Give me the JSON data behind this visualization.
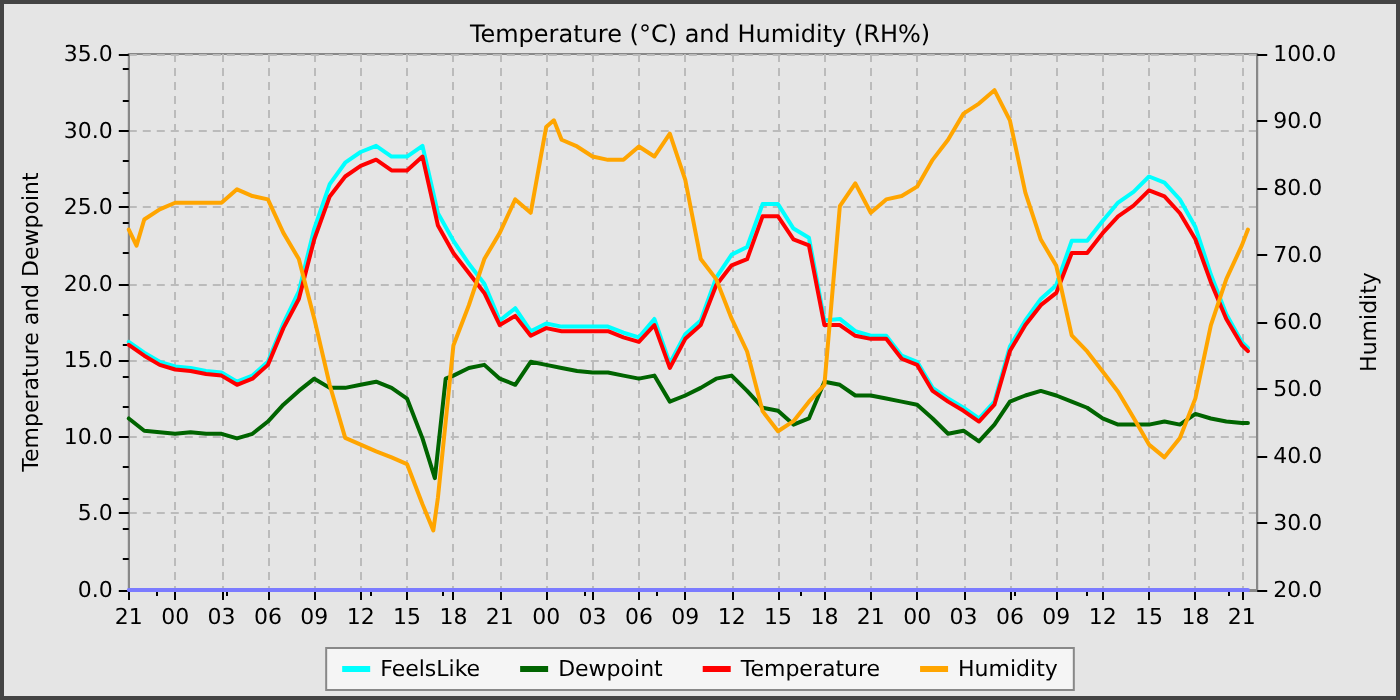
{
  "chart_data": {
    "type": "line",
    "title": "Temperature (°C) and Humidity (RH%)",
    "ylabel": "Temperature and Dewpoint",
    "y2label": "Humidity",
    "xlim": [
      "--01-01T21:00",
      "--01-04T22:00"
    ],
    "xticks": [
      {
        "value": "--01-01T21:00",
        "label": "21"
      },
      {
        "value": "--01-02T00:00",
        "label": "00"
      },
      {
        "value": "--01-02T03:00",
        "label": "03"
      },
      {
        "value": "--01-02T06:00",
        "label": "06"
      },
      {
        "value": "--01-02T09:00",
        "label": "09"
      },
      {
        "value": "--01-02T12:00",
        "label": "12"
      },
      {
        "value": "--01-02T15:00",
        "label": "15"
      },
      {
        "value": "--01-02T18:00",
        "label": "18"
      },
      {
        "value": "--01-02T21:00",
        "label": "21"
      },
      {
        "value": "--01-03T00:00",
        "label": "00"
      },
      {
        "value": "--01-03T03:00",
        "label": "03"
      },
      {
        "value": "--01-03T06:00",
        "label": "06"
      },
      {
        "value": "--01-03T09:00",
        "label": "09"
      },
      {
        "value": "--01-03T12:00",
        "label": "12"
      },
      {
        "value": "--01-03T15:00",
        "label": "15"
      },
      {
        "value": "--01-03T18:00",
        "label": "18"
      },
      {
        "value": "--01-03T21:00",
        "label": "21"
      },
      {
        "value": "--01-04T00:00",
        "label": "00"
      },
      {
        "value": "--01-04T03:00",
        "label": "03"
      },
      {
        "value": "--01-04T06:00",
        "label": "06"
      },
      {
        "value": "--01-04T09:00",
        "label": "09"
      },
      {
        "value": "--01-04T12:00",
        "label": "12"
      },
      {
        "value": "--01-04T15:00",
        "label": "15"
      },
      {
        "value": "--01-04T18:00",
        "label": "18"
      },
      {
        "value": "--01-04T21:00",
        "label": "21"
      }
    ],
    "ylim": [
      0,
      35
    ],
    "yticks": [
      {
        "value": 0,
        "label": "0.0"
      },
      {
        "value": 5,
        "label": "5.0"
      },
      {
        "value": 10,
        "label": "10.0"
      },
      {
        "value": 15,
        "label": "15.0"
      },
      {
        "value": 20,
        "label": "20.0"
      },
      {
        "value": 25,
        "label": "25.0"
      },
      {
        "value": 30,
        "label": "30.0"
      },
      {
        "value": 35,
        "label": "35.0"
      }
    ],
    "y2lim": [
      20,
      100
    ],
    "y2ticks": [
      {
        "value": 20,
        "label": "20.0"
      },
      {
        "value": 30,
        "label": "30.0"
      },
      {
        "value": 40,
        "label": "40.0"
      },
      {
        "value": 50,
        "label": "50.0"
      },
      {
        "value": 60,
        "label": "60.0"
      },
      {
        "value": 70,
        "label": "70.0"
      },
      {
        "value": 80,
        "label": "80.0"
      },
      {
        "value": 90,
        "label": "90.0"
      },
      {
        "value": 100,
        "label": "100.0"
      }
    ],
    "grid": true,
    "legend": "bottom",
    "marker": "none",
    "line_style": "solid",
    "series": [
      {
        "color": "#7b7bff",
        "x": [
          "--01-01T21:00",
          "--01-04T21:24"
        ],
        "values": [
          0,
          0
        ]
      },
      {
        "name": "FeelsLike",
        "color": "#00ffff",
        "x": [
          "--01-01T21:00",
          "--01-01T22:00",
          "--01-01T23:00",
          "--01-02T00:00",
          "--01-02T01:00",
          "--01-02T02:00",
          "--01-02T03:00",
          "--01-02T04:00",
          "--01-02T05:00",
          "--01-02T06:00",
          "--01-02T07:00",
          "--01-02T08:00",
          "--01-02T09:00",
          "--01-02T10:00",
          "--01-02T11:00",
          "--01-02T12:00",
          "--01-02T13:00",
          "--01-02T14:00",
          "--01-02T15:00",
          "--01-02T16:00",
          "--01-02T17:00",
          "--01-02T18:00",
          "--01-02T19:00",
          "--01-02T20:00",
          "--01-02T21:00",
          "--01-02T22:00",
          "--01-02T23:00",
          "--01-03T00:00",
          "--01-03T01:00",
          "--01-03T02:00",
          "--01-03T03:00",
          "--01-03T04:00",
          "--01-03T05:00",
          "--01-03T06:00",
          "--01-03T07:00",
          "--01-03T08:00",
          "--01-03T09:00",
          "--01-03T10:00",
          "--01-03T11:00",
          "--01-03T12:00",
          "--01-03T13:00",
          "--01-03T14:00",
          "--01-03T15:00",
          "--01-03T16:00",
          "--01-03T17:00",
          "--01-03T18:00",
          "--01-03T19:00",
          "--01-03T20:00",
          "--01-03T21:00",
          "--01-03T22:00",
          "--01-03T23:00",
          "--01-04T00:00",
          "--01-04T01:00",
          "--01-04T02:00",
          "--01-04T03:00",
          "--01-04T04:00",
          "--01-04T05:00",
          "--01-04T06:00",
          "--01-04T07:00",
          "--01-04T08:00",
          "--01-04T09:00",
          "--01-04T10:00",
          "--01-04T11:00",
          "--01-04T12:00",
          "--01-04T13:00",
          "--01-04T14:00",
          "--01-04T15:00",
          "--01-04T16:00",
          "--01-04T17:00",
          "--01-04T18:00",
          "--01-04T19:00",
          "--01-04T20:00",
          "--01-04T21:00",
          "--01-04T21:24"
        ],
        "values": [
          16.2,
          15.5,
          14.9,
          14.6,
          14.5,
          14.3,
          14.2,
          13.6,
          14.0,
          14.9,
          17.4,
          19.5,
          23.6,
          26.5,
          27.9,
          28.6,
          29.0,
          28.3,
          28.3,
          29.0,
          24.6,
          22.8,
          21.3,
          20.0,
          17.6,
          18.4,
          16.9,
          17.4,
          17.2,
          17.2,
          17.2,
          17.2,
          16.8,
          16.5,
          17.7,
          14.8,
          16.7,
          17.6,
          20.4,
          21.9,
          22.4,
          25.2,
          25.2,
          23.6,
          23.0,
          17.6,
          17.7,
          16.9,
          16.6,
          16.6,
          15.3,
          14.9,
          13.2,
          12.5,
          11.9,
          11.2,
          12.3,
          15.9,
          17.6,
          19.0,
          19.9,
          22.8,
          22.8,
          24.1,
          25.3,
          26.0,
          27.0,
          26.6,
          25.5,
          23.7,
          20.6,
          18.0,
          16.2,
          15.8
        ]
      },
      {
        "name": "Dewpoint",
        "color": "#006400",
        "x": [
          "--01-01T21:00",
          "--01-01T22:00",
          "--01-01T23:00",
          "--01-02T00:00",
          "--01-02T01:00",
          "--01-02T02:00",
          "--01-02T03:00",
          "--01-02T04:00",
          "--01-02T05:00",
          "--01-02T06:00",
          "--01-02T07:00",
          "--01-02T08:00",
          "--01-02T09:00",
          "--01-02T10:00",
          "--01-02T11:00",
          "--01-02T12:00",
          "--01-02T13:00",
          "--01-02T14:00",
          "--01-02T15:00",
          "--01-02T16:00",
          "--01-02T16:48",
          "--01-02T17:30",
          "--01-02T18:00",
          "--01-02T19:00",
          "--01-02T20:00",
          "--01-02T21:00",
          "--01-02T22:00",
          "--01-02T23:00",
          "--01-03T00:00",
          "--01-03T01:00",
          "--01-03T02:00",
          "--01-03T03:00",
          "--01-03T04:00",
          "--01-03T05:00",
          "--01-03T06:00",
          "--01-03T07:00",
          "--01-03T08:00",
          "--01-03T09:00",
          "--01-03T10:00",
          "--01-03T11:00",
          "--01-03T12:00",
          "--01-03T13:00",
          "--01-03T14:00",
          "--01-03T15:00",
          "--01-03T16:00",
          "--01-03T17:00",
          "--01-03T18:00",
          "--01-03T19:00",
          "--01-03T20:00",
          "--01-03T21:00",
          "--01-03T22:00",
          "--01-03T23:00",
          "--01-04T00:00",
          "--01-04T01:00",
          "--01-04T02:00",
          "--01-04T03:00",
          "--01-04T04:00",
          "--01-04T05:00",
          "--01-04T06:00",
          "--01-04T07:00",
          "--01-04T08:00",
          "--01-04T09:00",
          "--01-04T10:00",
          "--01-04T11:00",
          "--01-04T12:00",
          "--01-04T13:00",
          "--01-04T14:00",
          "--01-04T15:00",
          "--01-04T16:00",
          "--01-04T17:00",
          "--01-04T18:00",
          "--01-04T19:00",
          "--01-04T20:00",
          "--01-04T21:00",
          "--01-04T21:24"
        ],
        "values": [
          11.2,
          10.4,
          10.3,
          10.2,
          10.3,
          10.2,
          10.2,
          9.9,
          10.2,
          11.0,
          12.1,
          13.0,
          13.8,
          13.2,
          13.2,
          13.4,
          13.6,
          13.2,
          12.5,
          9.9,
          7.3,
          13.8,
          14.0,
          14.5,
          14.7,
          13.8,
          13.4,
          14.9,
          14.7,
          14.5,
          14.3,
          14.2,
          14.2,
          14.0,
          13.8,
          14.0,
          12.3,
          12.7,
          13.2,
          13.8,
          14.0,
          13.0,
          11.9,
          11.7,
          10.8,
          11.2,
          13.6,
          13.4,
          12.7,
          12.7,
          12.5,
          12.3,
          12.1,
          11.2,
          10.2,
          10.4,
          9.7,
          10.8,
          12.3,
          12.7,
          13.0,
          12.7,
          12.3,
          11.9,
          11.2,
          10.8,
          10.8,
          10.8,
          11.0,
          10.8,
          11.5,
          11.2,
          11.0,
          10.9,
          10.9
        ]
      },
      {
        "name": "Temperature",
        "color": "#ff0000",
        "x": [
          "--01-01T21:00",
          "--01-01T22:00",
          "--01-01T23:00",
          "--01-02T00:00",
          "--01-02T01:00",
          "--01-02T02:00",
          "--01-02T03:00",
          "--01-02T04:00",
          "--01-02T05:00",
          "--01-02T06:00",
          "--01-02T07:00",
          "--01-02T08:00",
          "--01-02T09:00",
          "--01-02T10:00",
          "--01-02T11:00",
          "--01-02T12:00",
          "--01-02T13:00",
          "--01-02T14:00",
          "--01-02T15:00",
          "--01-02T16:00",
          "--01-02T17:00",
          "--01-02T18:00",
          "--01-02T19:00",
          "--01-02T20:00",
          "--01-02T21:00",
          "--01-02T22:00",
          "--01-02T23:00",
          "--01-03T00:00",
          "--01-03T01:00",
          "--01-03T02:00",
          "--01-03T03:00",
          "--01-03T04:00",
          "--01-03T05:00",
          "--01-03T06:00",
          "--01-03T07:00",
          "--01-03T08:00",
          "--01-03T09:00",
          "--01-03T10:00",
          "--01-03T11:00",
          "--01-03T12:00",
          "--01-03T13:00",
          "--01-03T14:00",
          "--01-03T15:00",
          "--01-03T16:00",
          "--01-03T17:00",
          "--01-03T18:00",
          "--01-03T19:00",
          "--01-03T20:00",
          "--01-03T21:00",
          "--01-03T22:00",
          "--01-03T23:00",
          "--01-04T00:00",
          "--01-04T01:00",
          "--01-04T02:00",
          "--01-04T03:00",
          "--01-04T04:00",
          "--01-04T05:00",
          "--01-04T06:00",
          "--01-04T07:00",
          "--01-04T08:00",
          "--01-04T09:00",
          "--01-04T10:00",
          "--01-04T11:00",
          "--01-04T12:00",
          "--01-04T13:00",
          "--01-04T14:00",
          "--01-04T15:00",
          "--01-04T16:00",
          "--01-04T17:00",
          "--01-04T18:00",
          "--01-04T19:00",
          "--01-04T20:00",
          "--01-04T21:00",
          "--01-04T21:24"
        ],
        "values": [
          16.0,
          15.3,
          14.7,
          14.4,
          14.3,
          14.1,
          14.0,
          13.4,
          13.8,
          14.7,
          17.1,
          19.0,
          22.9,
          25.7,
          27.0,
          27.7,
          28.1,
          27.4,
          27.4,
          28.3,
          23.8,
          22.0,
          20.7,
          19.4,
          17.3,
          17.9,
          16.6,
          17.1,
          16.9,
          16.9,
          16.9,
          16.9,
          16.5,
          16.2,
          17.3,
          14.5,
          16.4,
          17.3,
          19.9,
          21.2,
          21.6,
          24.4,
          24.4,
          22.9,
          22.5,
          17.3,
          17.3,
          16.6,
          16.4,
          16.4,
          15.1,
          14.7,
          13.0,
          12.3,
          11.7,
          11.0,
          12.1,
          15.6,
          17.3,
          18.6,
          19.4,
          22.0,
          22.0,
          23.3,
          24.4,
          25.1,
          26.1,
          25.7,
          24.6,
          22.9,
          20.1,
          17.7,
          16.0,
          15.6
        ]
      },
      {
        "name": "Humidity",
        "color": "#ffa500",
        "axis": "y2",
        "x": [
          "--01-01T21:00",
          "--01-01T21:30",
          "--01-01T22:00",
          "--01-01T23:00",
          "--01-02T00:00",
          "--01-02T01:00",
          "--01-02T02:00",
          "--01-02T03:00",
          "--01-02T04:00",
          "--01-02T05:00",
          "--01-02T06:00",
          "--01-02T07:00",
          "--01-02T08:00",
          "--01-02T09:00",
          "--01-02T10:00",
          "--01-02T11:00",
          "--01-02T12:00",
          "--01-02T13:00",
          "--01-02T14:00",
          "--01-02T15:00",
          "--01-02T16:00",
          "--01-02T16:42",
          "--01-02T17:00",
          "--01-02T18:00",
          "--01-02T19:00",
          "--01-02T20:00",
          "--01-02T21:00",
          "--01-02T22:00",
          "--01-02T23:00",
          "--01-03T00:00",
          "--01-03T00:30",
          "--01-03T01:00",
          "--01-03T02:00",
          "--01-03T03:00",
          "--01-03T04:00",
          "--01-03T05:00",
          "--01-03T06:00",
          "--01-03T07:00",
          "--01-03T08:00",
          "--01-03T09:00",
          "--01-03T10:00",
          "--01-03T11:00",
          "--01-03T12:00",
          "--01-03T13:00",
          "--01-03T14:00",
          "--01-03T15:00",
          "--01-03T16:00",
          "--01-03T17:00",
          "--01-03T18:00",
          "--01-03T19:00",
          "--01-03T20:00",
          "--01-03T21:00",
          "--01-03T22:00",
          "--01-03T23:00",
          "--01-04T00:00",
          "--01-04T01:00",
          "--01-04T02:00",
          "--01-04T03:00",
          "--01-04T04:00",
          "--01-04T05:00",
          "--01-04T06:00",
          "--01-04T07:00",
          "--01-04T08:00",
          "--01-04T09:00",
          "--01-04T10:00",
          "--01-04T11:00",
          "--01-04T12:00",
          "--01-04T13:00",
          "--01-04T14:00",
          "--01-04T15:00",
          "--01-04T16:00",
          "--01-04T17:00",
          "--01-04T18:00",
          "--01-04T19:00",
          "--01-04T20:00",
          "--01-04T21:00",
          "--01-04T21:24"
        ],
        "values": [
          73.8,
          71.4,
          75.3,
          76.8,
          77.8,
          77.8,
          77.8,
          77.8,
          79.8,
          78.8,
          78.3,
          73.3,
          69.4,
          60.5,
          50.6,
          42.7,
          41.7,
          40.7,
          39.8,
          38.8,
          32.8,
          28.9,
          33.8,
          56.5,
          62.5,
          69.4,
          73.3,
          78.3,
          76.3,
          89.1,
          90.1,
          87.2,
          86.2,
          84.7,
          84.2,
          84.2,
          86.2,
          84.7,
          88.1,
          81.2,
          69.4,
          66.4,
          60.5,
          55.6,
          46.7,
          43.7,
          45.2,
          48.1,
          50.6,
          77.3,
          80.7,
          76.3,
          78.3,
          78.8,
          80.2,
          84.2,
          87.2,
          91.1,
          92.6,
          94.6,
          90.1,
          79.3,
          72.3,
          68.4,
          58.0,
          55.6,
          52.6,
          49.6,
          45.7,
          41.7,
          39.8,
          42.7,
          48.6,
          59.5,
          66.4,
          71.4,
          73.8
        ]
      }
    ]
  }
}
